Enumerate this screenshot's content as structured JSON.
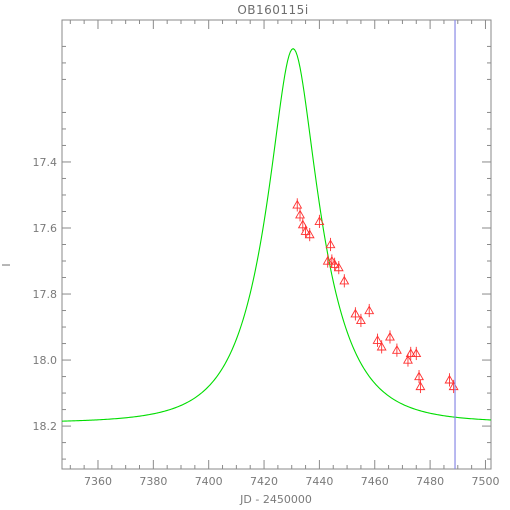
{
  "chart_data": {
    "type": "scatter",
    "title": "OB160115i",
    "xlabel": "JD - 2450000",
    "ylabel": "I",
    "xlim": [
      7347,
      7502
    ],
    "ylim": [
      18.33,
      16.97
    ],
    "y_inverted": true,
    "grid": false,
    "x_ticks": [
      7360,
      7380,
      7400,
      7420,
      7440,
      7460,
      7480,
      7500
    ],
    "x_tick_labels": [
      "7360",
      "7380",
      "7400",
      "7420",
      "7440",
      "7460",
      "7480",
      "7500"
    ],
    "y_ticks": [
      17.4,
      17.6,
      17.8,
      18.0,
      18.2
    ],
    "y_tick_labels": [
      "17.4",
      "17.6",
      "17.8",
      "18.0",
      "18.2"
    ],
    "vertical_marker_x": 7489,
    "model": {
      "t0": 7430.5,
      "u0": 0.37,
      "tE": 19.2,
      "baseline_mag": 18.19,
      "color": "#00dd00"
    },
    "series": [
      {
        "marker": "triangle",
        "color": "#ff3030",
        "points": [
          {
            "x": 7432,
            "y": 17.53,
            "err": 0.02
          },
          {
            "x": 7433,
            "y": 17.56,
            "err": 0.02
          },
          {
            "x": 7434,
            "y": 17.59,
            "err": 0.02
          },
          {
            "x": 7435,
            "y": 17.61,
            "err": 0.02
          },
          {
            "x": 7436.5,
            "y": 17.62,
            "err": 0.02
          },
          {
            "x": 7440,
            "y": 17.58,
            "err": 0.02
          },
          {
            "x": 7443,
            "y": 17.7,
            "err": 0.02
          },
          {
            "x": 7444,
            "y": 17.65,
            "err": 0.02
          },
          {
            "x": 7444.5,
            "y": 17.7,
            "err": 0.02
          },
          {
            "x": 7445.5,
            "y": 17.71,
            "err": 0.02
          },
          {
            "x": 7447,
            "y": 17.72,
            "err": 0.02
          },
          {
            "x": 7449,
            "y": 17.76,
            "err": 0.02
          },
          {
            "x": 7453,
            "y": 17.86,
            "err": 0.02
          },
          {
            "x": 7455,
            "y": 17.88,
            "err": 0.02
          },
          {
            "x": 7458,
            "y": 17.85,
            "err": 0.02
          },
          {
            "x": 7461,
            "y": 17.94,
            "err": 0.02
          },
          {
            "x": 7462.5,
            "y": 17.96,
            "err": 0.02
          },
          {
            "x": 7465.5,
            "y": 17.93,
            "err": 0.02
          },
          {
            "x": 7468,
            "y": 17.97,
            "err": 0.02
          },
          {
            "x": 7472,
            "y": 18.0,
            "err": 0.02
          },
          {
            "x": 7473,
            "y": 17.98,
            "err": 0.02
          },
          {
            "x": 7475,
            "y": 17.98,
            "err": 0.02
          },
          {
            "x": 7476,
            "y": 18.05,
            "err": 0.02
          },
          {
            "x": 7476.5,
            "y": 18.08,
            "err": 0.02
          },
          {
            "x": 7487,
            "y": 18.06,
            "err": 0.02
          },
          {
            "x": 7488.5,
            "y": 18.08,
            "err": 0.02
          }
        ]
      }
    ]
  }
}
